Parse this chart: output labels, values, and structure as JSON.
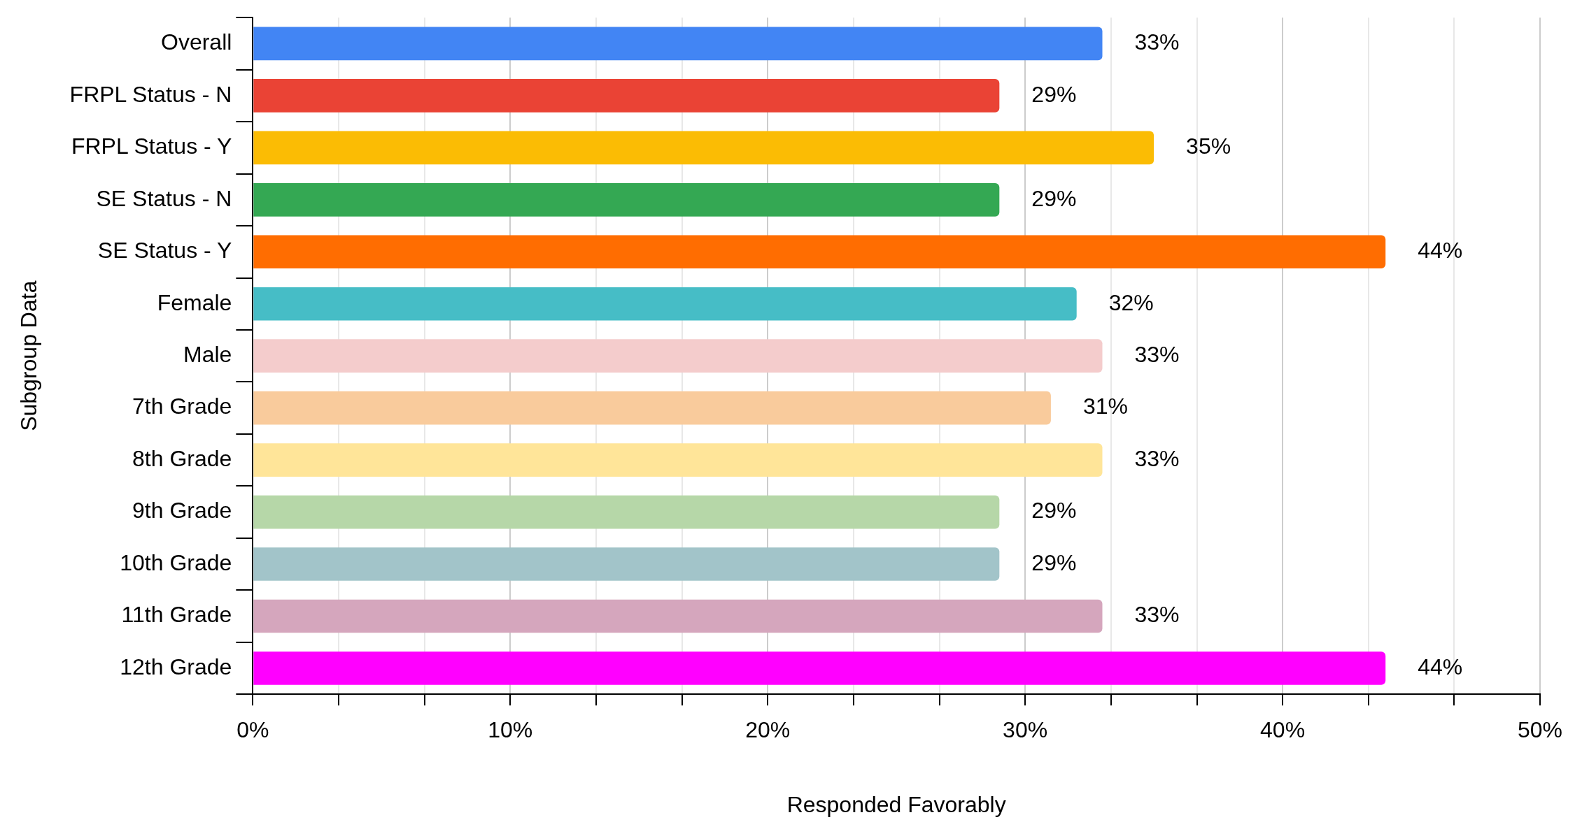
{
  "chart_data": {
    "type": "bar",
    "orientation": "horizontal",
    "xlabel": "Responded Favorably",
    "ylabel": "Subgroup Data",
    "categories": [
      "Overall",
      "FRPL Status - N",
      "FRPL Status - Y",
      "SE Status - N",
      "SE Status - Y",
      "Female",
      "Male",
      "7th Grade",
      "8th Grade",
      "9th Grade",
      "10th Grade",
      "11th Grade",
      "12th Grade"
    ],
    "values": [
      33,
      29,
      35,
      29,
      44,
      32,
      33,
      31,
      33,
      29,
      29,
      33,
      44
    ],
    "value_labels": [
      "33%",
      "29%",
      "35%",
      "29%",
      "44%",
      "32%",
      "33%",
      "31%",
      "33%",
      "29%",
      "29%",
      "33%",
      "44%"
    ],
    "colors": [
      "#4285f4",
      "#ea4335",
      "#fbbc04",
      "#34a853",
      "#ff6d01",
      "#46bdc6",
      "#f4cccc",
      "#f9cb9c",
      "#ffe599",
      "#b6d7a8",
      "#a2c4c9",
      "#d5a6bd",
      "#ff00ff"
    ],
    "xlim": [
      0,
      50
    ],
    "xticks": [
      {
        "value": 0,
        "label": "0%"
      },
      {
        "value": 3.33,
        "label": null
      },
      {
        "value": 6.67,
        "label": null
      },
      {
        "value": 10,
        "label": "10%"
      },
      {
        "value": 13.33,
        "label": null
      },
      {
        "value": 16.67,
        "label": null
      },
      {
        "value": 20,
        "label": "20%"
      },
      {
        "value": 23.33,
        "label": null
      },
      {
        "value": 26.67,
        "label": null
      },
      {
        "value": 30,
        "label": "30%"
      },
      {
        "value": 33.33,
        "label": null
      },
      {
        "value": 36.67,
        "label": null
      },
      {
        "value": 40,
        "label": "40%"
      },
      {
        "value": 43.33,
        "label": null
      },
      {
        "value": 46.67,
        "label": null
      },
      {
        "value": 50,
        "label": "50%"
      }
    ],
    "grid": true,
    "legend": false
  }
}
